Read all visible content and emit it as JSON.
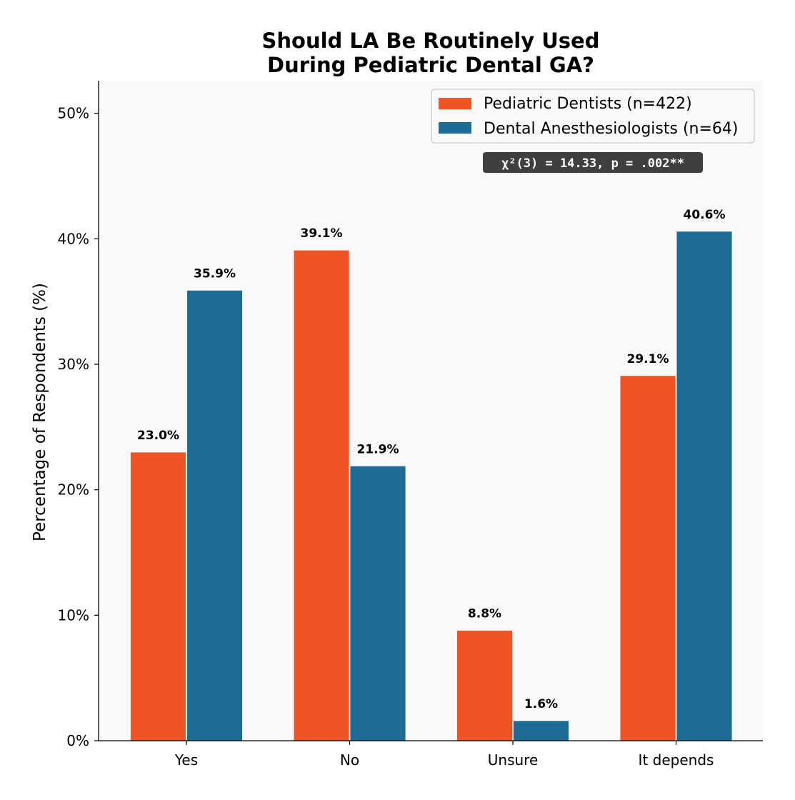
{
  "chart_data": {
    "type": "bar",
    "title": [
      "Should LA Be Routinely Used",
      "During Pediatric Dental GA?"
    ],
    "xlabel": "",
    "ylabel": "Percentage of Respondents (%)",
    "categories": [
      "Yes",
      "No",
      "Unsure",
      "It depends"
    ],
    "series": [
      {
        "name": "Pediatric Dentists (n=422)",
        "color": "#EF5426",
        "values": [
          23.0,
          39.1,
          8.8,
          29.1
        ]
      },
      {
        "name": "Dental Anesthesiologists (n=64)",
        "color": "#1E6C93",
        "values": [
          35.9,
          21.9,
          1.6,
          40.6
        ]
      }
    ],
    "ylim": [
      0,
      52.6
    ],
    "yticks": [
      0,
      10,
      20,
      30,
      40,
      50
    ],
    "ytick_labels": [
      "0%",
      "10%",
      "20%",
      "30%",
      "40%",
      "50%"
    ],
    "value_labels": [
      [
        "23.0%",
        "39.1%",
        "8.8%",
        "29.1%"
      ],
      [
        "35.9%",
        "21.9%",
        "1.6%",
        "40.6%"
      ]
    ],
    "annotation": "χ²(3) = 14.33, p = .002**",
    "legend_position": "top-right",
    "grid": false,
    "plot_background": "#F9F9F9",
    "annotation_background": "#3F3F3F"
  }
}
